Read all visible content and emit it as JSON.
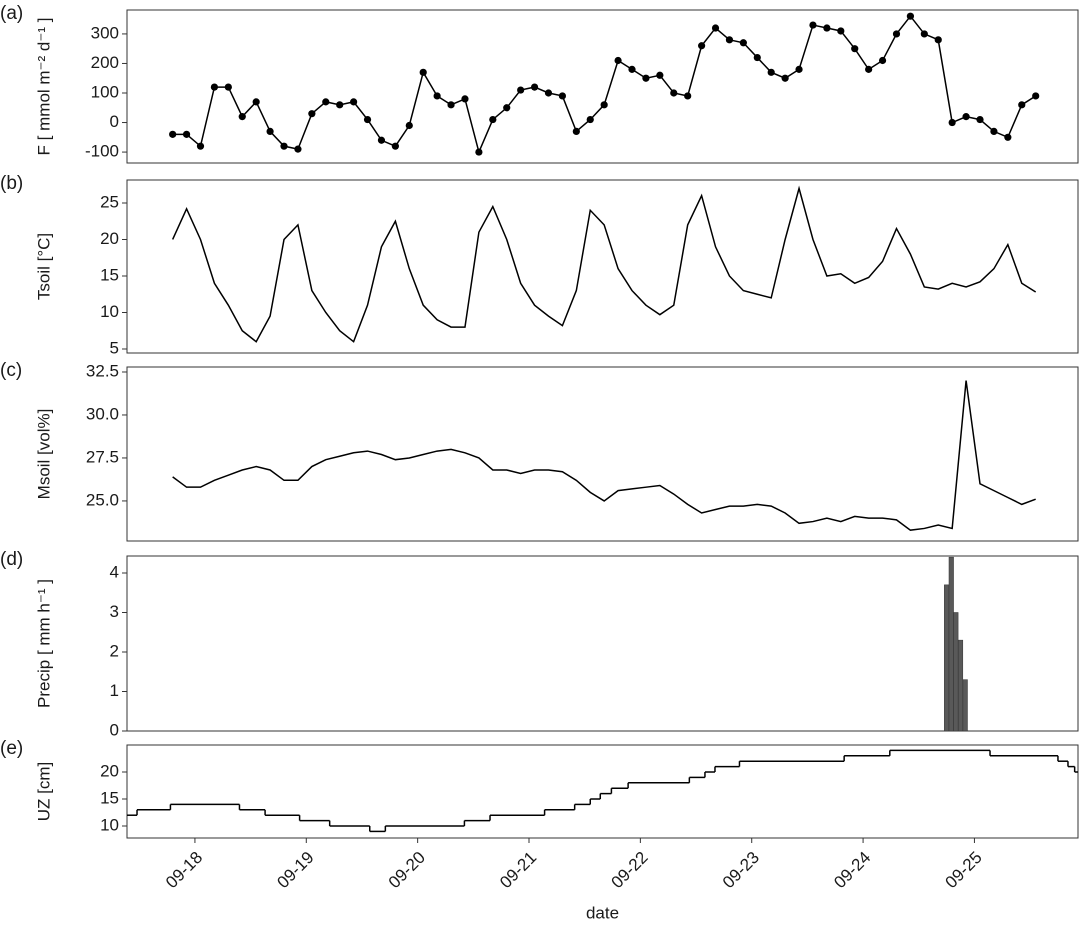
{
  "chart_data": [
    {
      "type": "line",
      "panel_label": "(a)",
      "ylabel": "F [ mmol m⁻² d⁻¹ ]",
      "markers": true,
      "color": "#000000",
      "x": [
        17.8,
        17.925,
        18.05,
        18.175,
        18.3,
        18.425,
        18.55,
        18.675,
        18.8,
        18.925,
        19.05,
        19.175,
        19.3,
        19.425,
        19.55,
        19.675,
        19.8,
        19.925,
        20.05,
        20.175,
        20.3,
        20.425,
        20.55,
        20.675,
        20.8,
        20.925,
        21.05,
        21.175,
        21.3,
        21.425,
        21.55,
        21.675,
        21.8,
        21.925,
        22.05,
        22.175,
        22.3,
        22.425,
        22.55,
        22.675,
        22.8,
        22.925,
        23.05,
        23.175,
        23.3,
        23.425,
        23.55,
        23.675,
        23.8,
        23.925,
        24.05,
        24.175,
        24.3,
        24.425,
        24.55,
        24.675,
        24.8,
        24.925,
        25.05,
        25.175,
        25.3,
        25.425,
        25.55
      ],
      "values": [
        -40,
        -40,
        -80,
        120,
        120,
        20,
        70,
        -30,
        -80,
        -90,
        30,
        70,
        60,
        70,
        10,
        -60,
        -80,
        -10,
        170,
        90,
        60,
        80,
        -100,
        10,
        50,
        110,
        120,
        100,
        90,
        -30,
        10,
        60,
        210,
        180,
        150,
        160,
        100,
        90,
        260,
        320,
        280,
        270,
        220,
        170,
        150,
        180,
        330,
        320,
        310,
        250,
        180,
        210,
        300,
        360,
        300,
        280,
        0,
        20,
        10,
        -30,
        -50,
        60,
        90
      ],
      "xlim": [
        17.39,
        25.93
      ],
      "ylim": [
        -137,
        381
      ],
      "yticks": [
        -100,
        0,
        100,
        200,
        300
      ]
    },
    {
      "type": "line",
      "panel_label": "(b)",
      "ylabel": "Tsoil [°C]",
      "color": "#000000",
      "x": [
        17.8,
        17.925,
        18.05,
        18.175,
        18.3,
        18.425,
        18.55,
        18.675,
        18.8,
        18.925,
        19.05,
        19.175,
        19.3,
        19.425,
        19.55,
        19.675,
        19.8,
        19.925,
        20.05,
        20.175,
        20.3,
        20.425,
        20.55,
        20.675,
        20.8,
        20.925,
        21.05,
        21.175,
        21.3,
        21.425,
        21.55,
        21.675,
        21.8,
        21.925,
        22.05,
        22.175,
        22.3,
        22.425,
        22.55,
        22.675,
        22.8,
        22.925,
        23.05,
        23.175,
        23.3,
        23.425,
        23.55,
        23.675,
        23.8,
        23.925,
        24.05,
        24.175,
        24.3,
        24.425,
        24.55,
        24.675,
        24.8,
        24.925,
        25.05,
        25.175,
        25.3,
        25.425,
        25.55
      ],
      "values": [
        20,
        24.2,
        20,
        14,
        11,
        7.5,
        6,
        9.5,
        20,
        22,
        13,
        10,
        7.5,
        6,
        11,
        19,
        22.5,
        16,
        11,
        9,
        8,
        8,
        21,
        24.5,
        20,
        14,
        11,
        9.5,
        8.2,
        13,
        24,
        22,
        16,
        13,
        11,
        9.7,
        11,
        22,
        26,
        19,
        15,
        13,
        12.5,
        12,
        20,
        27,
        20,
        15,
        15.3,
        14,
        14.8,
        17,
        21.5,
        18,
        13.5,
        13.2,
        14,
        13.5,
        14.2,
        16,
        19.3,
        14,
        12.8
      ],
      "xlim": [
        17.39,
        25.93
      ],
      "ylim": [
        4.45,
        28.15
      ],
      "yticks": [
        5,
        10,
        15,
        20,
        25
      ]
    },
    {
      "type": "line",
      "panel_label": "(c)",
      "ylabel": "Msoil [vol%]",
      "color": "#000000",
      "x": [
        17.8,
        17.925,
        18.05,
        18.175,
        18.3,
        18.425,
        18.55,
        18.675,
        18.8,
        18.925,
        19.05,
        19.175,
        19.3,
        19.425,
        19.55,
        19.675,
        19.8,
        19.925,
        20.05,
        20.175,
        20.3,
        20.425,
        20.55,
        20.675,
        20.8,
        20.925,
        21.05,
        21.175,
        21.3,
        21.425,
        21.55,
        21.675,
        21.8,
        21.925,
        22.05,
        22.175,
        22.3,
        22.425,
        22.55,
        22.675,
        22.8,
        22.925,
        23.05,
        23.175,
        23.3,
        23.425,
        23.55,
        23.675,
        23.8,
        23.925,
        24.05,
        24.175,
        24.3,
        24.425,
        24.55,
        24.675,
        24.8,
        24.925,
        25.05,
        25.175,
        25.3,
        25.425,
        25.55
      ],
      "values": [
        26.4,
        25.8,
        25.8,
        26.2,
        26.5,
        26.8,
        27.0,
        26.8,
        26.2,
        26.2,
        27.0,
        27.4,
        27.6,
        27.8,
        27.9,
        27.7,
        27.4,
        27.5,
        27.7,
        27.9,
        28.0,
        27.8,
        27.5,
        26.8,
        26.8,
        26.6,
        26.8,
        26.8,
        26.7,
        26.2,
        25.5,
        25.0,
        25.6,
        25.7,
        25.8,
        25.9,
        25.4,
        24.8,
        24.3,
        24.5,
        24.7,
        24.7,
        24.8,
        24.7,
        24.3,
        23.7,
        23.8,
        24.0,
        23.8,
        24.1,
        24.0,
        24.0,
        23.9,
        23.3,
        23.4,
        23.6,
        23.4,
        32.0,
        26.0,
        25.6,
        25.2,
        24.8,
        25.1
      ],
      "xlim": [
        17.39,
        25.93
      ],
      "ylim": [
        22.67,
        32.79
      ],
      "yticks": [
        {
          "value": 25,
          "label": "25.0"
        },
        27.5,
        {
          "value": 30,
          "label": "30.0"
        },
        32.5
      ]
    },
    {
      "type": "bar",
      "panel_label": "(d)",
      "ylabel": "Precip [ mm h⁻¹ ]",
      "color": "#595959",
      "x": [
        24.75,
        24.792,
        24.833,
        24.875,
        24.917
      ],
      "values": [
        3.7,
        4.4,
        3.0,
        2.3,
        1.3
      ],
      "xlim": [
        17.39,
        25.93
      ],
      "ylim": [
        0,
        4.43
      ],
      "yticks": [
        0,
        1,
        2,
        3,
        4
      ]
    },
    {
      "type": "line",
      "panel_label": "(e)",
      "ylabel": "UZ [cm]",
      "color": "#000000",
      "drawstyle": "steps-post",
      "x": [
        17.39,
        17.48,
        17.78,
        18.4,
        18.63,
        18.94,
        19.21,
        19.57,
        19.71,
        20.42,
        20.65,
        21.14,
        21.41,
        21.55,
        21.64,
        21.74,
        21.89,
        22.44,
        22.58,
        22.67,
        22.89,
        23.83,
        24.24,
        25.14,
        25.75,
        25.84,
        25.9,
        25.93
      ],
      "values": [
        12,
        13,
        14,
        13,
        12,
        11,
        10,
        9,
        10,
        11,
        12,
        13,
        14,
        15,
        16,
        17,
        18,
        19,
        20,
        21,
        22,
        23,
        24,
        23,
        22,
        21,
        20,
        20
      ],
      "xlim": [
        17.39,
        25.93
      ],
      "ylim": [
        7.78,
        25
      ],
      "yticks": [
        10,
        15,
        20
      ],
      "xticks": [
        {
          "value": 18,
          "label": "09-18"
        },
        {
          "value": 19,
          "label": "09-19"
        },
        {
          "value": 20,
          "label": "09-20"
        },
        {
          "value": 21,
          "label": "09-21"
        },
        {
          "value": 22,
          "label": "09-22"
        },
        {
          "value": 23,
          "label": "09-23"
        },
        {
          "value": 24,
          "label": "09-24"
        },
        {
          "value": 25,
          "label": "09-25"
        }
      ],
      "xlabel": "date"
    }
  ]
}
